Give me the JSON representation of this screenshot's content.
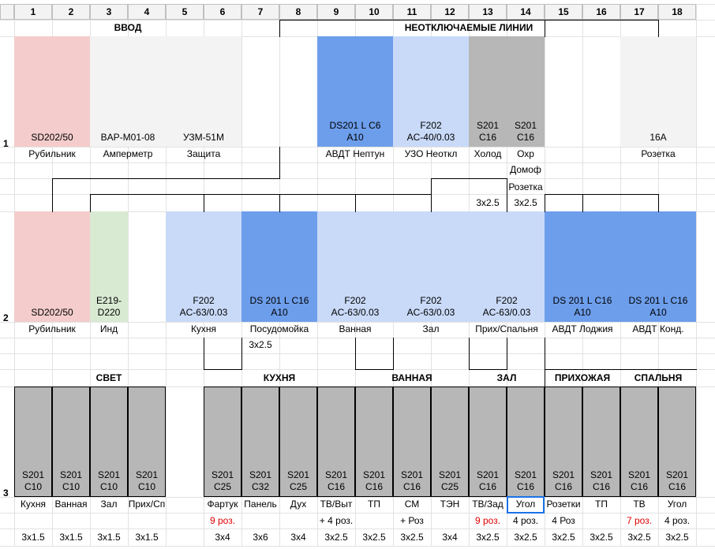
{
  "columns": [
    "1",
    "2",
    "3",
    "4",
    "5",
    "6",
    "7",
    "8",
    "9",
    "10",
    "11",
    "12",
    "13",
    "14",
    "15",
    "16",
    "17",
    "18"
  ],
  "rows": [
    "1",
    "2",
    "3"
  ],
  "titles": {
    "vvod": "ВВОД",
    "neotkl": "НЕОТКЛЮЧАЕМЫЕ ЛИНИИ",
    "svet": "СВЕТ",
    "kuhnya": "КУХНЯ",
    "vannaya": "ВАННАЯ",
    "zal": "ЗАЛ",
    "prihozhaya": "ПРИХОЖАЯ",
    "spalnya": "СПАЛЬНЯ"
  },
  "row1": [
    {
      "text": "SD202/50",
      "label": "Рубильник",
      "color": "#f4cccc"
    },
    {
      "text": "BAP-M01-08",
      "label": "Амперметр",
      "color": "#f3f3f3"
    },
    {
      "text": "УЗМ-51М",
      "label": "Защита",
      "color": "#f3f3f3"
    },
    {
      "text": "DS201 L C6\nA10",
      "label": "АВДТ Нептун",
      "color": "#6d9eeb"
    },
    {
      "text": "F202\nAC-40/0.03",
      "label": "УЗО Неоткл",
      "color": "#c9daf8"
    },
    {
      "text": "S201\nC16",
      "label": "Холод",
      "color": "#b7b7b7"
    },
    {
      "text": "S201\nC16",
      "label": "Охр",
      "color": "#b7b7b7"
    },
    {
      "text": "16A",
      "label": "Розетка",
      "color": "#f3f3f3"
    }
  ],
  "row1_extra": {
    "domof": "Домоф",
    "rozetka": "Розетка",
    "cab1": "3x2.5",
    "cab2": "3x2.5"
  },
  "row2": [
    {
      "text": "SD202/50",
      "label": "Рубильник",
      "color": "#f4cccc"
    },
    {
      "text": "E219-\nD220",
      "label": "Инд",
      "color": "#d9ead3"
    },
    {
      "text": "F202\nAC-63/0.03",
      "label": "Кухня",
      "color": "#c9daf8"
    },
    {
      "text": "DS 201 L C16\nA10",
      "label": "Посудомойка",
      "color": "#6d9eeb"
    },
    {
      "text": "F202\nAC-63/0.03",
      "label": "Ванная",
      "color": "#c9daf8"
    },
    {
      "text": "F202\nAC-63/0.03",
      "label": "Зал",
      "color": "#c9daf8"
    },
    {
      "text": "F202\nAC-63/0.03",
      "label": "Прих/Спальня",
      "color": "#c9daf8"
    },
    {
      "text": "DS 201 L C16\nA10",
      "label": "АВДТ Лоджия",
      "color": "#6d9eeb"
    },
    {
      "text": "DS 201 L C16\nA10",
      "label": "АВДТ Конд.",
      "color": "#6d9eeb"
    }
  ],
  "row2_extra": {
    "cab": "3x2.5"
  },
  "row3": [
    {
      "text": "S201\nC10",
      "label": "Кухня",
      "note": "",
      "cable": "3x1.5"
    },
    {
      "text": "S201\nC10",
      "label": "Ванная",
      "note": "",
      "cable": "3x1.5"
    },
    {
      "text": "S201\nC10",
      "label": "Зал",
      "note": "",
      "cable": "3x1.5"
    },
    {
      "text": "S201\nC10",
      "label": "Прих/Сп",
      "note": "",
      "cable": "3x1.5"
    },
    {
      "text": "S201\nC25",
      "label": "Фартук",
      "note": "9 роз.",
      "cable": "3x4"
    },
    {
      "text": "S201\nC32",
      "label": "Панель",
      "note": "",
      "cable": "3x6"
    },
    {
      "text": "S201\nC25",
      "label": "Дух",
      "note": "",
      "cable": "3x4"
    },
    {
      "text": "S201\nC16",
      "label": "ТВ/Выт",
      "note": "+ 4 роз.",
      "cable": "3x2.5"
    },
    {
      "text": "S201\nC16",
      "label": "ТП",
      "note": "",
      "cable": "3x2.5"
    },
    {
      "text": "S201\nC16",
      "label": "СМ",
      "note": "+ Роз",
      "cable": "3x2.5"
    },
    {
      "text": "S201\nC25",
      "label": "ТЭН",
      "note": "",
      "cable": "3x4"
    },
    {
      "text": "S201\nC16",
      "label": "ТВ/Зад",
      "note": "9 роз.",
      "cable": "3x2.5"
    },
    {
      "text": "S201\nC16",
      "label": "Угол",
      "note": "4 роз.",
      "cable": "3x2.5"
    },
    {
      "text": "S201\nC16",
      "label": "Розетки",
      "note": "4 Роз",
      "cable": "3x2.5"
    },
    {
      "text": "S201\nC16",
      "label": "ТП",
      "note": "",
      "cable": "3x2.5"
    },
    {
      "text": "S201\nC16",
      "label": "ТВ",
      "note": "7 роз.",
      "cable": "3x2.5"
    },
    {
      "text": "S201\nC16",
      "label": "Угол",
      "note": "4 роз.",
      "cable": "3x2.5"
    }
  ],
  "colors": {
    "gray": "#b7b7b7",
    "red_note": "#e00000"
  }
}
